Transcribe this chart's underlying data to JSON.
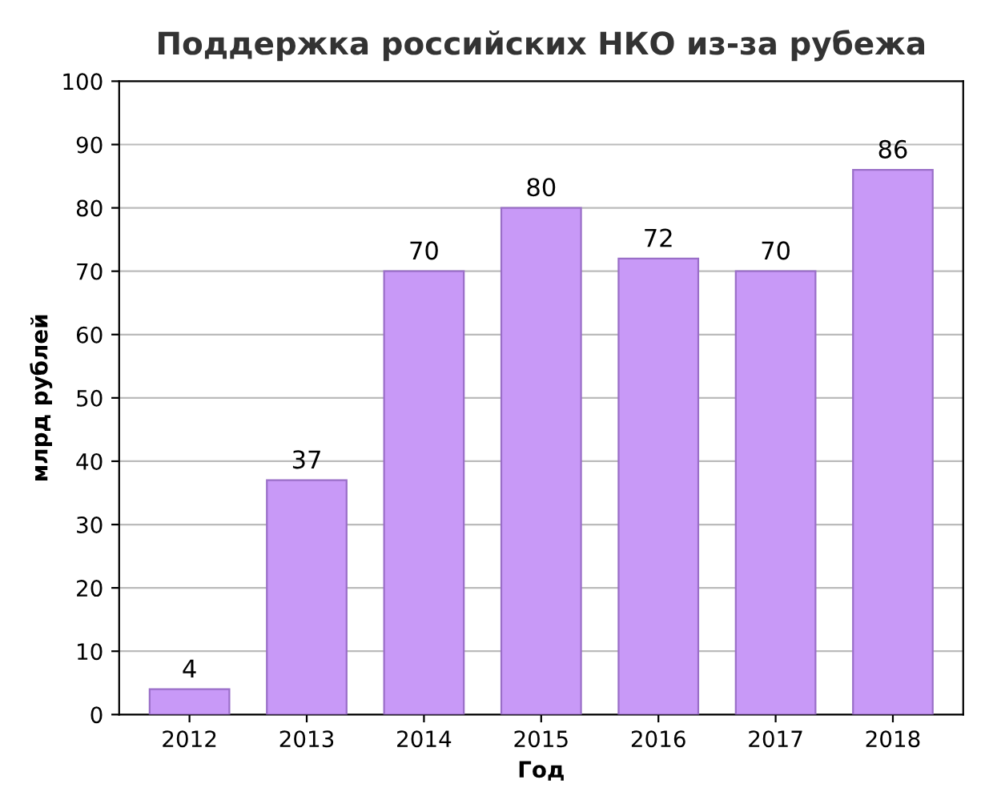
{
  "chart_data": {
    "type": "bar",
    "title": "Поддержка российских НКО из-за рубежа",
    "xlabel": "Год",
    "ylabel": "млрд рублей",
    "categories": [
      "2012",
      "2013",
      "2014",
      "2015",
      "2016",
      "2017",
      "2018"
    ],
    "values": [
      4,
      37,
      70,
      80,
      72,
      70,
      86
    ],
    "color": "#c899f7",
    "ylim": [
      0,
      100
    ],
    "yticks": [
      0,
      10,
      20,
      30,
      40,
      50,
      60,
      70,
      80,
      90,
      100
    ],
    "grid": "y",
    "data_labels": true
  }
}
